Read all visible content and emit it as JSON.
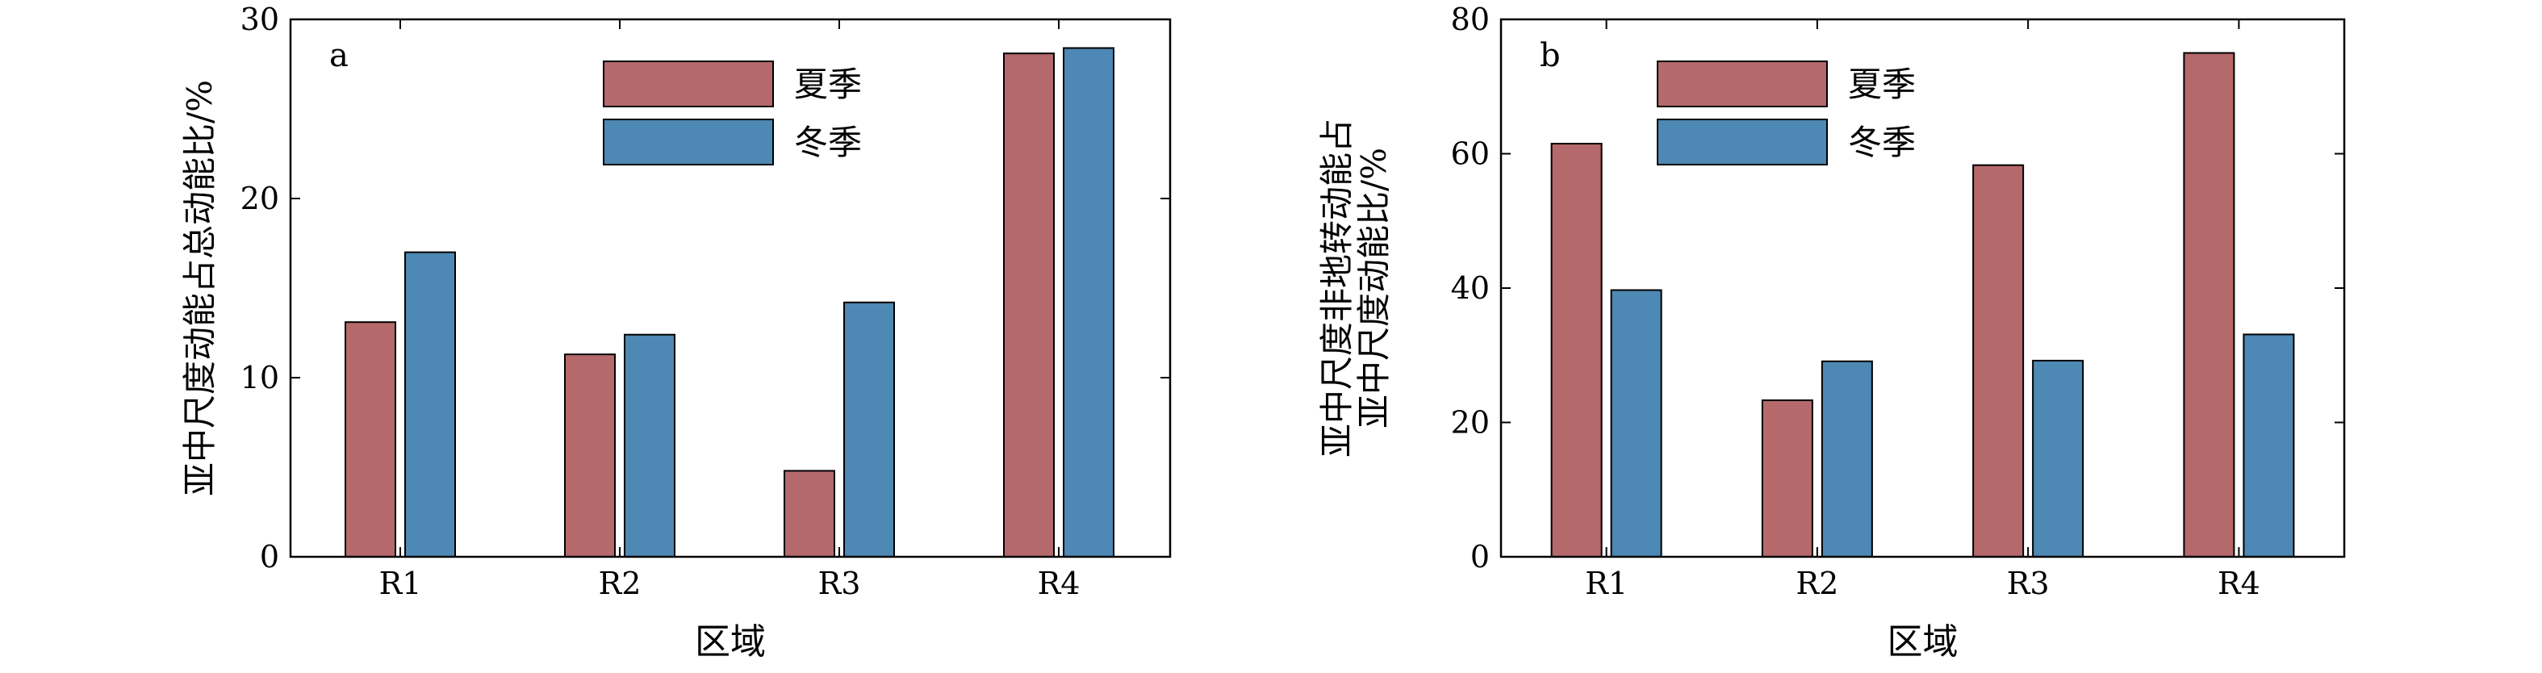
{
  "colors": {
    "summer": "#B5696B",
    "winter": "#4E88B4",
    "axis": "#000000"
  },
  "chart_data": [
    {
      "type": "bar",
      "panel_label": "a",
      "categories": [
        "R1",
        "R2",
        "R3",
        "R4"
      ],
      "series": [
        {
          "name": "夏季",
          "values": [
            13.1,
            11.3,
            4.8,
            28.1
          ]
        },
        {
          "name": "冬季",
          "values": [
            17.0,
            12.4,
            14.2,
            28.4
          ]
        }
      ],
      "xlabel": "区域",
      "ylabel_lines": [
        "亚中尺度动能占总动能比/%"
      ],
      "ylim": [
        0,
        30
      ],
      "yticks": [
        0,
        10,
        20,
        30
      ],
      "legend_position": "top-center"
    },
    {
      "type": "bar",
      "panel_label": "b",
      "categories": [
        "R1",
        "R2",
        "R3",
        "R4"
      ],
      "series": [
        {
          "name": "夏季",
          "values": [
            61.5,
            23.3,
            58.3,
            75.0
          ]
        },
        {
          "name": "冬季",
          "values": [
            39.7,
            29.1,
            29.2,
            33.1
          ]
        }
      ],
      "xlabel": "区域",
      "ylabel_lines": [
        "亚中尺度非地转动能占",
        "亚中尺度动能比/%"
      ],
      "ylim": [
        0,
        80
      ],
      "yticks": [
        0,
        20,
        40,
        60,
        80
      ],
      "legend_position": "top-center"
    }
  ]
}
